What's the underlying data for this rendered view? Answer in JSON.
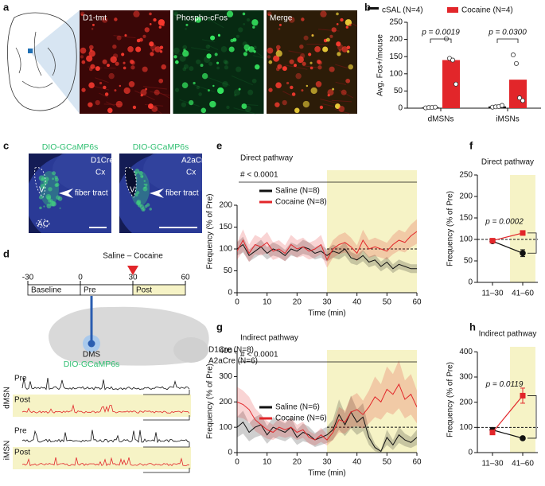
{
  "panel_labels": [
    "a",
    "b",
    "c",
    "d",
    "e",
    "f",
    "g",
    "h"
  ],
  "figure_a": {
    "images": [
      "D1-tmt",
      "Phospho-cFos",
      "Merge"
    ]
  },
  "figure_c": {
    "images": [
      {
        "title": "DIO-GCaMP6s",
        "line": "D1Cre",
        "region": "Cx",
        "ventricle": "V",
        "tract": "fiber tract",
        "commissure": "AC"
      },
      {
        "title": "DIO-GCaMP6s",
        "line": "A2aCre",
        "region": "Cx",
        "ventricle": "V",
        "tract": "fiber tract"
      }
    ]
  },
  "figure_d": {
    "event": "Saline – Cocaine",
    "timeline": [
      -30,
      0,
      30,
      60
    ],
    "phases": [
      "Baseline",
      "Pre",
      "Post"
    ],
    "region": "DMS",
    "virus": "DIO-GCaMP6s",
    "mice": [
      "D1Cre (N=8)",
      "A2aCre (N=6)"
    ],
    "cells": [
      "dMSN",
      "iMSN"
    ],
    "traces": [
      "Pre",
      "Post"
    ]
  },
  "chart_data": [
    {
      "type": "bar",
      "ylabel": "Avg. Fos+/mouse",
      "categories": [
        "dMSNs",
        "iMSNs"
      ],
      "series": [
        {
          "name": "cSAL (N=4)",
          "color": "#111111",
          "values": [
            2,
            5
          ],
          "points": [
            [
              1,
              2,
              2,
              3
            ],
            [
              3,
              4,
              5,
              8
            ]
          ]
        },
        {
          "name": "Cocaine (N=4)",
          "color": "#e2262a",
          "values": [
            140,
            83
          ],
          "points": [
            [
              202,
              145,
              140,
              70
            ],
            [
              155,
              130,
              30,
              22
            ]
          ]
        }
      ],
      "annotations": [
        "p = 0.0019",
        "p = 0.0300"
      ],
      "ylim": [
        0,
        250
      ],
      "yticks": [
        0,
        50,
        100,
        150,
        200,
        250
      ]
    },
    {
      "type": "line",
      "title": "Direct pathway",
      "xlabel": "Time (min)",
      "ylabel": "Frequency (% of Pre)",
      "x": [
        0,
        2,
        4,
        6,
        8,
        10,
        12,
        14,
        16,
        18,
        20,
        22,
        24,
        26,
        28,
        30,
        32,
        34,
        36,
        38,
        40,
        42,
        44,
        46,
        48,
        50,
        52,
        54,
        56,
        58,
        60
      ],
      "series": [
        {
          "name": "Saline (N=8)",
          "color": "#111111",
          "values": [
            100,
            110,
            85,
            95,
            105,
            90,
            100,
            95,
            85,
            100,
            95,
            105,
            100,
            90,
            95,
            85,
            95,
            90,
            100,
            80,
            75,
            85,
            70,
            75,
            60,
            70,
            55,
            65,
            60,
            55,
            55
          ],
          "errors": [
            15,
            18,
            14,
            15,
            16,
            14,
            15,
            14,
            13,
            15,
            14,
            16,
            15,
            14,
            15,
            14,
            15,
            14,
            15,
            13,
            12,
            13,
            12,
            12,
            11,
            12,
            10,
            11,
            10,
            10,
            10
          ]
        },
        {
          "name": "Cocaine (N=8)",
          "color": "#e2262a",
          "values": [
            95,
            120,
            90,
            110,
            105,
            115,
            95,
            100,
            90,
            110,
            100,
            105,
            95,
            100,
            110,
            75,
            100,
            110,
            115,
            105,
            90,
            120,
            100,
            105,
            100,
            95,
            110,
            120,
            115,
            130,
            140
          ],
          "errors": [
            20,
            25,
            20,
            22,
            20,
            24,
            20,
            20,
            18,
            22,
            20,
            21,
            19,
            20,
            22,
            18,
            20,
            22,
            23,
            21,
            18,
            24,
            20,
            21,
            20,
            19,
            22,
            24,
            23,
            26,
            28
          ]
        }
      ],
      "annotation": "# < 0.0001",
      "reference_line": 100,
      "highlight": [
        30,
        60
      ],
      "xlim": [
        0,
        60
      ],
      "xticks": [
        0,
        10,
        20,
        30,
        40,
        50,
        60
      ],
      "ylim": [
        0,
        280
      ],
      "yticks": [
        0,
        50,
        100,
        150,
        200
      ]
    },
    {
      "type": "line",
      "title": "Direct pathway",
      "ylabel": "Frequency (% of Pre)",
      "categories": [
        "11–30",
        "41–60"
      ],
      "series": [
        {
          "color": "#111111",
          "marker": "circle",
          "values": [
            96,
            68
          ],
          "errors": [
            3,
            8
          ]
        },
        {
          "color": "#e2262a",
          "marker": "square",
          "values": [
            97,
            115
          ],
          "errors": [
            3,
            4
          ]
        }
      ],
      "annotation": "p = 0.0002",
      "reference_line": 100,
      "highlight": 1,
      "ylim": [
        0,
        250
      ],
      "yticks": [
        0,
        50,
        100,
        150,
        200,
        250
      ]
    },
    {
      "type": "line",
      "title": "Indirect pathway",
      "xlabel": "Time (min)",
      "ylabel": "Frequency (% of Pre)",
      "x": [
        0,
        2,
        4,
        6,
        8,
        10,
        12,
        14,
        16,
        18,
        20,
        22,
        24,
        26,
        28,
        30,
        32,
        34,
        36,
        38,
        40,
        42,
        44,
        46,
        48,
        50,
        52,
        54,
        56,
        58,
        60
      ],
      "series": [
        {
          "name": "Saline (N=6)",
          "color": "#111111",
          "values": [
            100,
            120,
            80,
            100,
            110,
            70,
            100,
            90,
            80,
            100,
            60,
            80,
            70,
            50,
            60,
            70,
            90,
            150,
            110,
            160,
            120,
            140,
            60,
            20,
            5,
            60,
            30,
            70,
            50,
            40,
            60
          ],
          "errors": [
            40,
            45,
            35,
            40,
            42,
            35,
            40,
            38,
            35,
            40,
            30,
            35,
            32,
            28,
            30,
            32,
            40,
            60,
            45,
            65,
            50,
            55,
            30,
            15,
            5,
            30,
            20,
            32,
            25,
            22,
            30
          ]
        },
        {
          "name": "Cocaine (N=6)",
          "color": "#e2262a",
          "values": [
            200,
            190,
            170,
            130,
            110,
            90,
            80,
            100,
            90,
            100,
            80,
            90,
            60,
            50,
            70,
            50,
            80,
            130,
            120,
            160,
            170,
            150,
            180,
            220,
            200,
            250,
            230,
            270,
            210,
            230,
            180
          ],
          "errors": [
            60,
            55,
            50,
            45,
            40,
            35,
            30,
            35,
            32,
            35,
            30,
            32,
            25,
            22,
            28,
            22,
            30,
            50,
            45,
            60,
            65,
            55,
            65,
            80,
            70,
            90,
            80,
            95,
            75,
            80,
            65
          ]
        }
      ],
      "annotation": "# < 0.0001",
      "reference_line": 100,
      "highlight": [
        30,
        60
      ],
      "xlim": [
        0,
        60
      ],
      "xticks": [
        0,
        10,
        20,
        30,
        40,
        50,
        60
      ],
      "ylim": [
        0,
        405
      ],
      "yticks": [
        0,
        100,
        200,
        300,
        400
      ]
    },
    {
      "type": "line",
      "title": "Indirect pathway",
      "ylabel": "Frequency (% of Pre)",
      "categories": [
        "11–30",
        "41–60"
      ],
      "series": [
        {
          "color": "#111111",
          "marker": "circle",
          "values": [
            90,
            57
          ],
          "errors": [
            8,
            4
          ]
        },
        {
          "color": "#e2262a",
          "marker": "square",
          "values": [
            80,
            226
          ],
          "errors": [
            6,
            30
          ]
        }
      ],
      "annotation": "p = 0.0119",
      "reference_line": 100,
      "highlight": 1,
      "ylim": [
        0,
        420
      ],
      "yticks": [
        0,
        100,
        200,
        300,
        400
      ]
    }
  ]
}
